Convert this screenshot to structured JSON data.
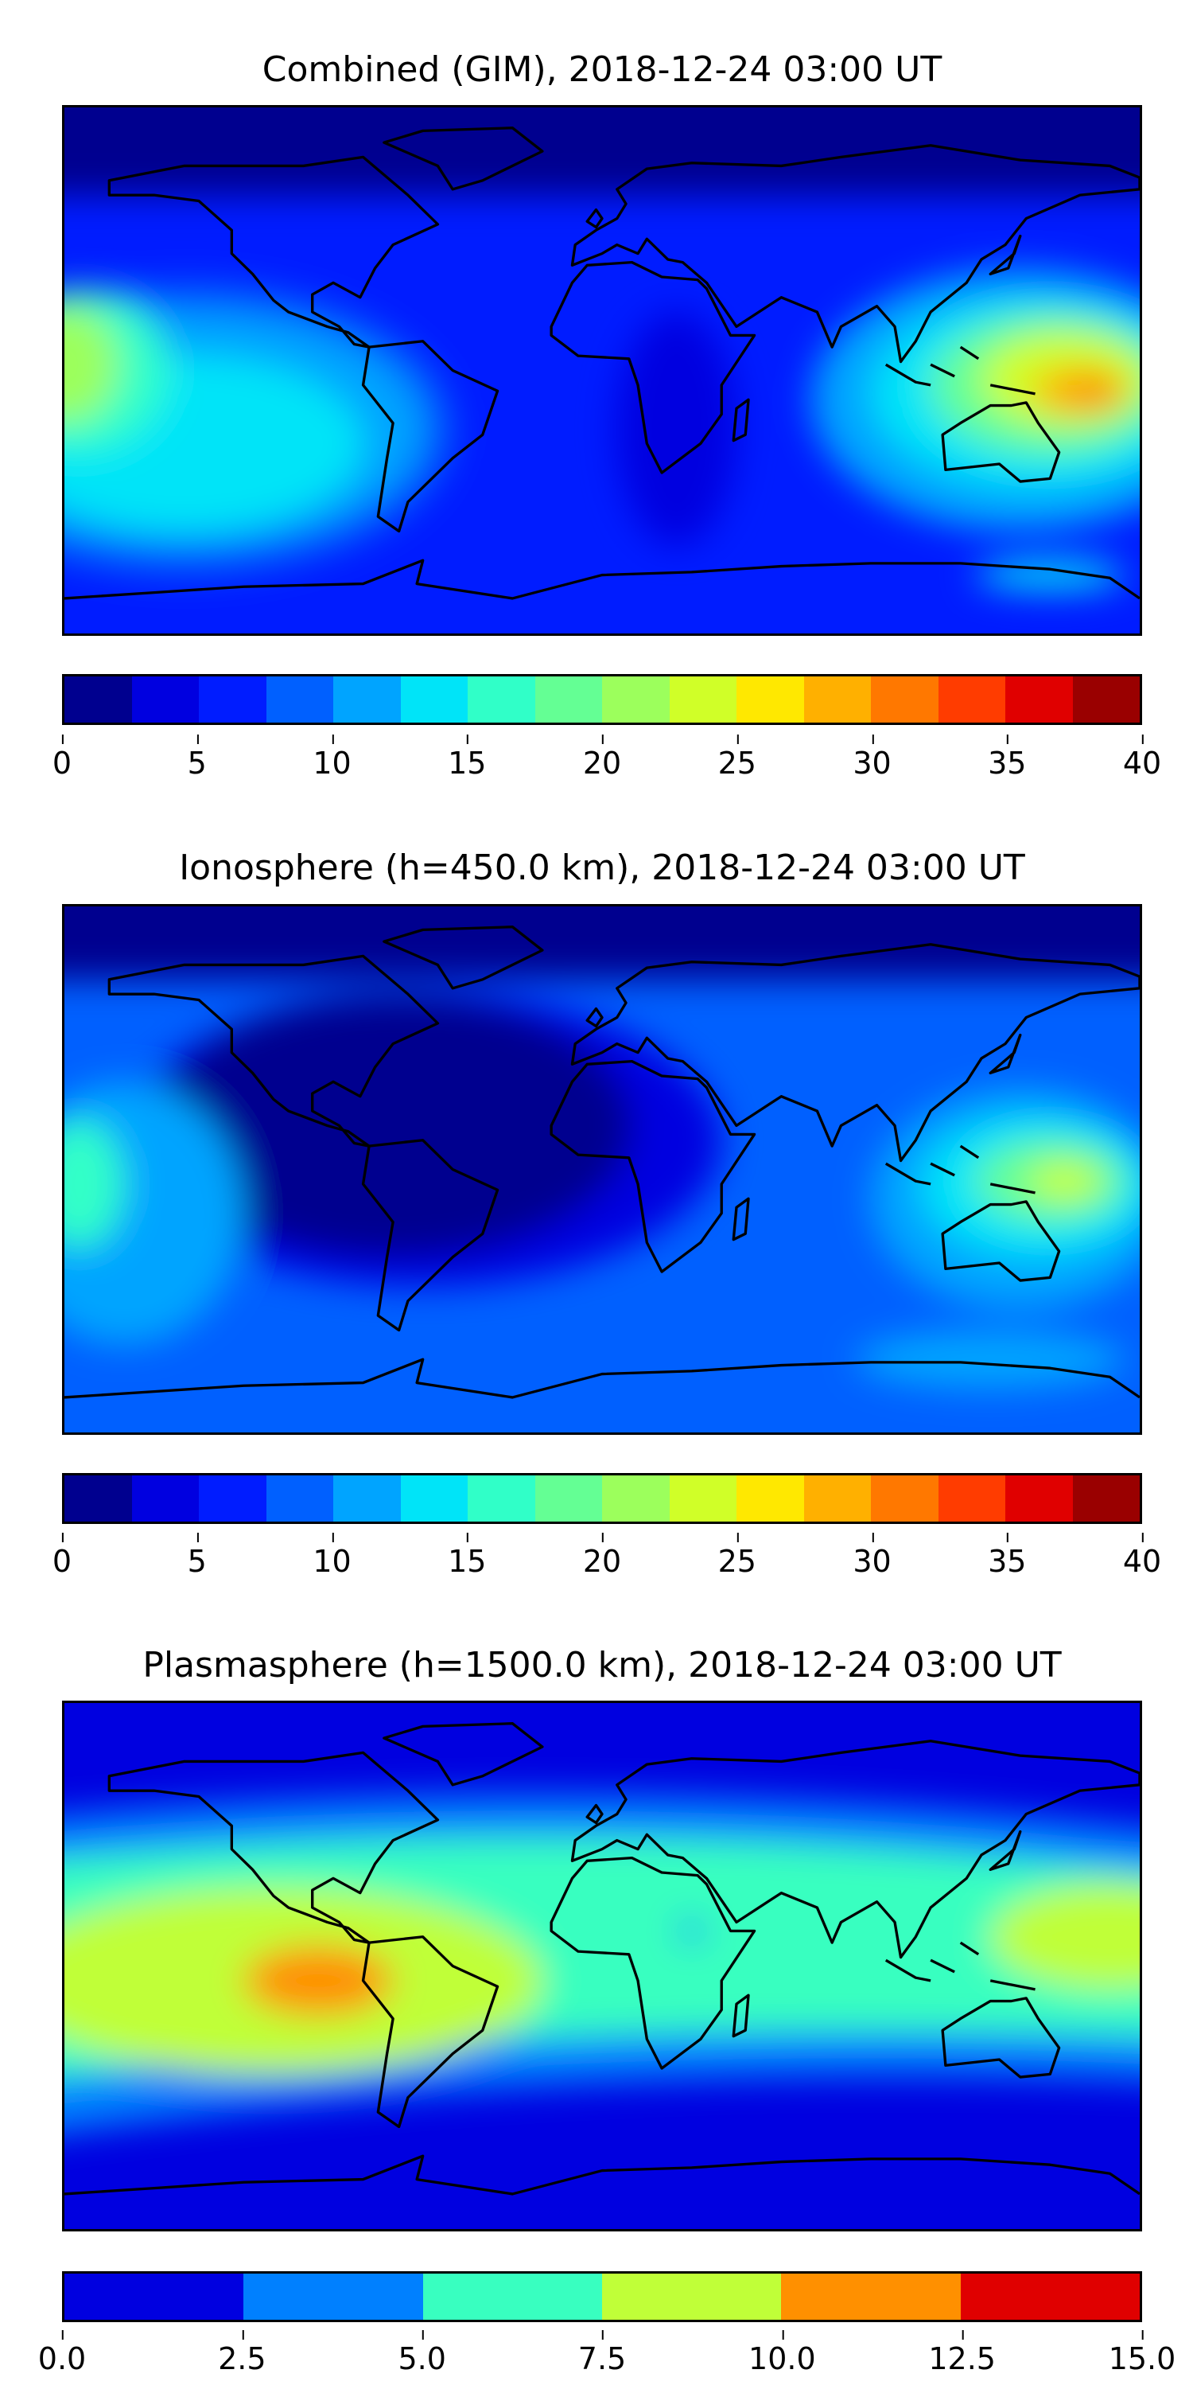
{
  "chart_data": [
    {
      "type": "heatmap",
      "title": "Combined (GIM), 2018-12-24 03:00 UT",
      "colorbar": {
        "range": [
          0,
          40
        ],
        "step": 2.5,
        "ticks": [
          "0",
          "5",
          "10",
          "15",
          "20",
          "25",
          "30",
          "35",
          "40"
        ]
      },
      "colors": [
        "#00008f",
        "#0000e0",
        "#001cff",
        "#0060ff",
        "#00a4ff",
        "#00e4f8",
        "#30ffc8",
        "#64ff94",
        "#9cff5c",
        "#d0ff28",
        "#ffe800",
        "#ffb000",
        "#ff7800",
        "#ff3c00",
        "#e00000",
        "#9a0000"
      ],
      "features": "max ~32 near 150E 15S; secondary ~22 at 180W equator; minima <2.5 over high northern latitudes"
    },
    {
      "type": "heatmap",
      "title": "Ionosphere  (h=450.0 km), 2018-12-24 03:00 UT",
      "colorbar": {
        "range": [
          0,
          40
        ],
        "step": 2.5,
        "ticks": [
          "0",
          "5",
          "10",
          "15",
          "20",
          "25",
          "30",
          "35",
          "40"
        ]
      },
      "colors": [
        "#00008f",
        "#0000e0",
        "#001cff",
        "#0060ff",
        "#00a4ff",
        "#00e4f8",
        "#30ffc8",
        "#64ff94",
        "#9cff5c",
        "#d0ff28",
        "#ffe800",
        "#ffb000",
        "#ff7800",
        "#ff3c00",
        "#e00000",
        "#9a0000"
      ],
      "features": "max ~22 near 150E 10S; ~15 at 180W equator; minima <2.5 over Americas/Atlantic"
    },
    {
      "type": "heatmap",
      "title": "Plasmasphere (h=1500.0 km), 2018-12-24 03:00 UT",
      "colorbar": {
        "range": [
          0,
          15
        ],
        "step": 2.5,
        "ticks": [
          "0.0",
          "2.5",
          "5.0",
          "7.5",
          "10.0",
          "12.5",
          "15.0"
        ]
      },
      "colors": [
        "#0000e0",
        "#0080ff",
        "#38ffc0",
        "#c0ff38",
        "#ff9000",
        "#e00000"
      ],
      "features": "max 10-12.5 near 130W 15S; band 5-10 along low latitudes"
    }
  ]
}
